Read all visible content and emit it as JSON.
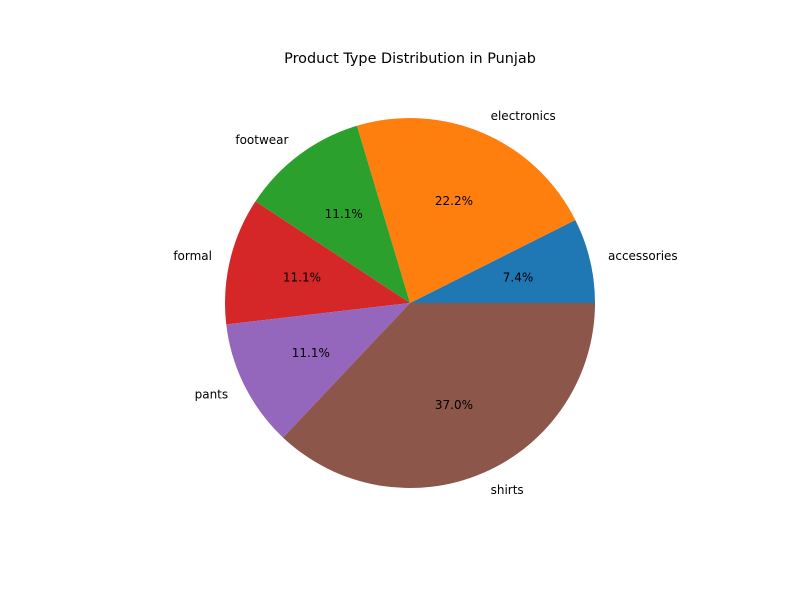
{
  "chart_data": {
    "type": "pie",
    "title": "Product Type Distribution in Punjab",
    "start_angle_deg": 0,
    "direction": "counterclockwise",
    "slices": [
      {
        "label": "accessories",
        "value": 7.4,
        "pct_text": "7.4%",
        "color": "#1f77b4"
      },
      {
        "label": "electronics",
        "value": 22.2,
        "pct_text": "22.2%",
        "color": "#ff7f0e"
      },
      {
        "label": "footwear",
        "value": 11.1,
        "pct_text": "11.1%",
        "color": "#2ca02c"
      },
      {
        "label": "formal",
        "value": 11.1,
        "pct_text": "11.1%",
        "color": "#d62728"
      },
      {
        "label": "pants",
        "value": 11.1,
        "pct_text": "11.1%",
        "color": "#9467bd"
      },
      {
        "label": "shirts",
        "value": 37.0,
        "pct_text": "37.0%",
        "color": "#8c564b"
      }
    ]
  }
}
